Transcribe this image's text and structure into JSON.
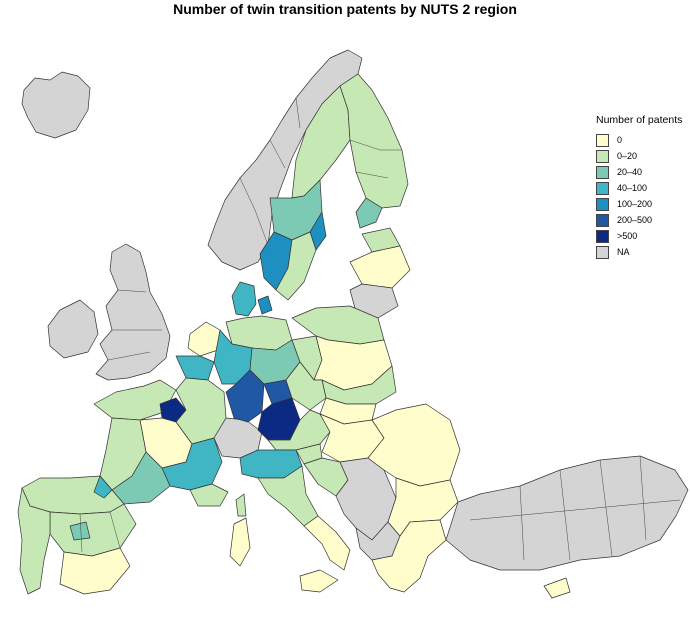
{
  "title": "Number of twin transition patents by NUTS 2 region",
  "legend": {
    "title": "Number of patents",
    "categories": [
      {
        "label": "0",
        "color": "#fefdcb"
      },
      {
        "label": "0–20",
        "color": "#c6e8b5"
      },
      {
        "label": "20–40",
        "color": "#7ccab4"
      },
      {
        "label": "40–100",
        "color": "#40b5c3"
      },
      {
        "label": "100–200",
        "color": "#1e8fc1"
      },
      {
        "label": "200–500",
        "color": "#2158a6"
      },
      {
        "label": ">500",
        "color": "#0c2a83"
      },
      {
        "label": "NA",
        "color": "#d4d4d4"
      }
    ]
  }
}
